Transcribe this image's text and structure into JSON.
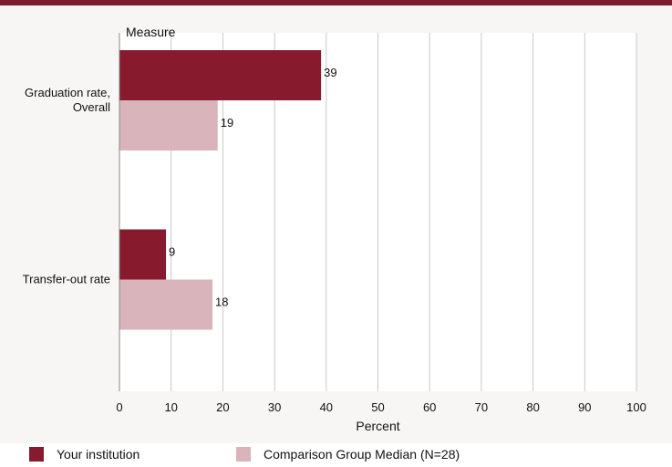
{
  "colors": {
    "accent": "#7d1c2b",
    "series1": "#871a2c",
    "series2": "#d9b4ba",
    "grid": "#c8c8c8"
  },
  "chart_data": {
    "type": "bar",
    "orientation": "horizontal",
    "categories": [
      "Graduation rate,\nOverall",
      "Transfer-out rate"
    ],
    "series": [
      {
        "name": "Your institution",
        "values": [
          39,
          9
        ]
      },
      {
        "name": "Comparison Group Median (N=28)",
        "values": [
          19,
          18
        ]
      }
    ],
    "ylabel": "Measure",
    "xlabel": "Percent",
    "xlim": [
      0,
      100
    ],
    "xticks": [
      0,
      10,
      20,
      30,
      40,
      50,
      60,
      70,
      80,
      90,
      100
    ],
    "grid": true,
    "legend": "bottom"
  }
}
